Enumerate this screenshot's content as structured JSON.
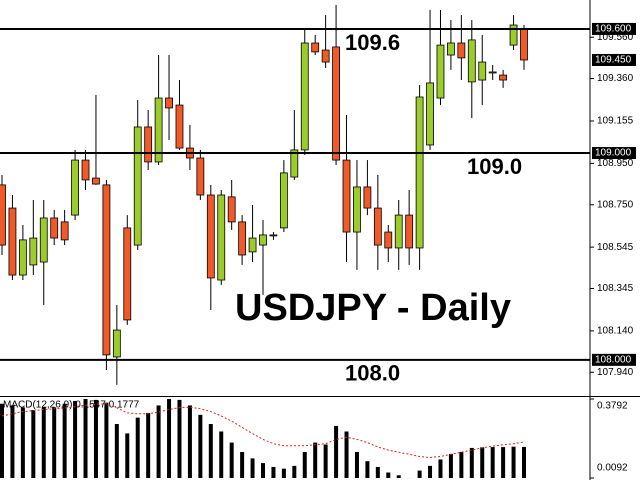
{
  "chart_data": [
    {
      "type": "candlestick",
      "title": "USDJPY - Daily",
      "up_color": "#9ccc2c",
      "down_color": "#f05a28",
      "ylim": [
        107.83,
        109.74
      ],
      "yticks": [
        {
          "value": 109.56,
          "label": "109.560"
        },
        {
          "value": 109.36,
          "label": "109.360"
        },
        {
          "value": 109.155,
          "label": "109.155"
        },
        {
          "value": 108.95,
          "label": "108.950"
        },
        {
          "value": 108.75,
          "label": "108.750"
        },
        {
          "value": 108.545,
          "label": "108.545"
        },
        {
          "value": 108.345,
          "label": "108.345"
        },
        {
          "value": 108.14,
          "label": "108.140"
        },
        {
          "value": 107.94,
          "label": "107.940"
        }
      ],
      "levels": [
        {
          "value": 109.6,
          "label": "109.6",
          "axis_label": "109.600"
        },
        {
          "value": 109.0,
          "label": "109.0",
          "axis_label": "109.000"
        },
        {
          "value": 108.0,
          "label": "108.0",
          "axis_label": "108.000"
        }
      ],
      "price_marker": {
        "value": 109.45,
        "label": "109.450"
      },
      "open": [
        108.846,
        108.734,
        108.41,
        108.459,
        108.473,
        108.686,
        108.667,
        108.7,
        108.966,
        108.879,
        108.846,
        108.014,
        108.638,
        108.555,
        109.126,
        108.957,
        109.266,
        109.232,
        109.024,
        108.976,
        108.797,
        108.386,
        108.788,
        108.667,
        108.522,
        108.555,
        108.604,
        108.638,
        108.884,
        109.015,
        109.532,
        109.498,
        109.513,
        108.966,
        108.618,
        108.836,
        108.734,
        108.618,
        108.541,
        108.7,
        108.541,
        109.039,
        109.266,
        109.474,
        109.532,
        109.344,
        109.353,
        109.392,
        109.377,
        109.522,
        109.6
      ],
      "high": [
        108.894,
        108.797,
        108.652,
        108.773,
        108.773,
        108.725,
        108.725,
        109.015,
        109.015,
        109.281,
        108.87,
        108.265,
        108.7,
        109.256,
        109.208,
        109.474,
        109.474,
        109.353,
        109.136,
        109.015,
        108.846,
        108.821,
        108.87,
        108.7,
        108.749,
        108.676,
        108.618,
        108.966,
        109.208,
        109.595,
        109.571,
        109.667,
        109.716,
        109.184,
        108.966,
        108.966,
        108.894,
        108.652,
        108.773,
        108.821,
        109.329,
        109.692,
        109.692,
        109.643,
        109.667,
        109.643,
        109.571,
        109.426,
        109.402,
        109.667,
        109.619
      ],
      "low": [
        108.507,
        108.386,
        108.386,
        108.41,
        108.265,
        108.555,
        108.555,
        108.676,
        108.821,
        108.846,
        107.951,
        107.879,
        108.169,
        108.531,
        108.918,
        108.942,
        109.063,
        109.015,
        108.918,
        108.773,
        108.241,
        108.362,
        108.628,
        108.459,
        108.473,
        108.314,
        108.58,
        108.618,
        108.87,
        108.991,
        109.474,
        109.411,
        108.942,
        108.473,
        108.435,
        108.7,
        108.435,
        108.473,
        108.435,
        108.459,
        108.435,
        109.015,
        109.232,
        109.402,
        109.353,
        109.169,
        109.232,
        109.353,
        109.315,
        109.498,
        109.402
      ],
      "close": [
        108.555,
        108.41,
        108.58,
        108.589,
        108.686,
        108.589,
        108.58,
        108.966,
        108.87,
        108.85,
        108.024,
        108.144,
        108.193,
        109.126,
        108.957,
        109.266,
        109.218,
        109.024,
        108.976,
        108.797,
        108.396,
        108.797,
        108.667,
        108.507,
        108.589,
        108.604,
        108.604,
        108.904,
        109.015,
        109.532,
        109.489,
        109.44,
        108.966,
        108.618,
        108.836,
        108.734,
        108.555,
        108.541,
        108.7,
        108.541,
        109.271,
        109.339,
        109.522,
        109.532,
        109.46,
        109.547,
        109.44,
        109.392,
        109.353,
        109.619,
        109.45
      ]
    },
    {
      "type": "macd",
      "title": "MACD(12,26,9) 0.1547 0.1777",
      "ylim": [
        0.0092,
        0.3792
      ],
      "yticks": [
        0.3792,
        0.0092
      ],
      "series": [
        {
          "type": "bar",
          "color": "#000000",
          "values": [
            0.357,
            0.349,
            0.34,
            0.327,
            0.34,
            0.34,
            0.357,
            0.37,
            0.379,
            0.375,
            0.362,
            0.262,
            0.218,
            0.292,
            0.314,
            0.349,
            0.379,
            0.375,
            0.349,
            0.305,
            0.262,
            0.227,
            0.175,
            0.131,
            0.101,
            0.079,
            0.061,
            0.053,
            0.066,
            0.131,
            0.175,
            0.166,
            0.253,
            0.227,
            0.131,
            0.088,
            0.061,
            0.035,
            0.022,
            0.009,
            0.044,
            0.066,
            0.096,
            0.122,
            0.131,
            0.15,
            0.153,
            0.154,
            0.154,
            0.156,
            0.1547
          ]
        },
        {
          "type": "line",
          "color": "#e02020",
          "dashed": true,
          "values": [
            0.3,
            0.31,
            0.32,
            0.325,
            0.33,
            0.333,
            0.337,
            0.343,
            0.35,
            0.355,
            0.357,
            0.338,
            0.314,
            0.31,
            0.31,
            0.318,
            0.33,
            0.339,
            0.341,
            0.334,
            0.32,
            0.3,
            0.275,
            0.246,
            0.217,
            0.19,
            0.17,
            0.16,
            0.16,
            0.16,
            0.165,
            0.17,
            0.19,
            0.2,
            0.19,
            0.175,
            0.155,
            0.14,
            0.13,
            0.12,
            0.11,
            0.105,
            0.11,
            0.12,
            0.13,
            0.14,
            0.15,
            0.158,
            0.165,
            0.17,
            0.1777
          ]
        }
      ]
    }
  ]
}
